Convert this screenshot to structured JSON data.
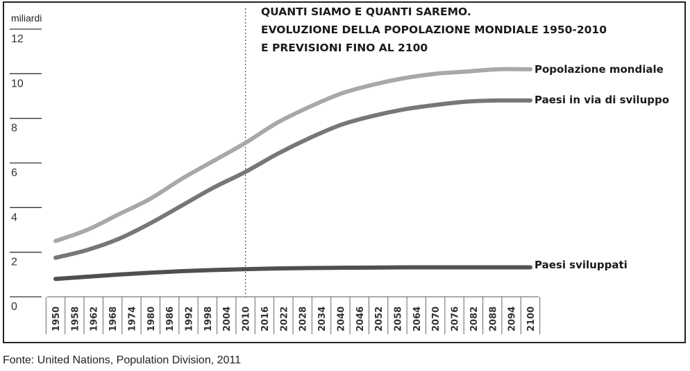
{
  "chart_data": {
    "type": "line",
    "title_lines": [
      "QUANTI SIAMO E QUANTI SAREMO.",
      "EVOLUZIONE DELLA POPOLAZIONE MONDIALE 1950-2010",
      "E PREVISIONI FINO AL 2100"
    ],
    "ylabel": "miliardi",
    "yticks": [
      "0",
      "2",
      "4",
      "6",
      "8",
      "10",
      "12"
    ],
    "ylim": [
      0,
      12
    ],
    "xticks": [
      "1950",
      "1958",
      "1962",
      "1968",
      "1974",
      "1980",
      "1986",
      "1992",
      "1998",
      "2004",
      "2010",
      "2016",
      "2022",
      "2028",
      "2034",
      "2040",
      "2046",
      "2052",
      "2058",
      "2064",
      "2070",
      "2076",
      "2082",
      "2088",
      "2094",
      "2100"
    ],
    "xlim": [
      1950,
      2100
    ],
    "divider_year": 2010,
    "grid": false,
    "series": [
      {
        "name": "Popolazione mondiale",
        "color": "#a8a8a8",
        "x": [
          1950,
          1960,
          1970,
          1980,
          1990,
          2000,
          2010,
          2020,
          2030,
          2040,
          2050,
          2060,
          2070,
          2080,
          2090,
          2100
        ],
        "y": [
          2.5,
          3.0,
          3.7,
          4.4,
          5.3,
          6.1,
          6.9,
          7.8,
          8.5,
          9.1,
          9.5,
          9.8,
          10.0,
          10.1,
          10.2,
          10.2
        ]
      },
      {
        "name": "Paesi in via di sviluppo",
        "color": "#777777",
        "x": [
          1950,
          1960,
          1970,
          1980,
          1990,
          2000,
          2010,
          2020,
          2030,
          2040,
          2050,
          2060,
          2070,
          2080,
          2090,
          2100
        ],
        "y": [
          1.75,
          2.1,
          2.6,
          3.3,
          4.1,
          4.9,
          5.6,
          6.4,
          7.1,
          7.7,
          8.1,
          8.4,
          8.6,
          8.75,
          8.8,
          8.8
        ]
      },
      {
        "name": "Paesi sviluppati",
        "color": "#505050",
        "x": [
          1950,
          1960,
          1970,
          1980,
          1990,
          2000,
          2010,
          2020,
          2030,
          2040,
          2050,
          2060,
          2070,
          2080,
          2090,
          2100
        ],
        "y": [
          0.8,
          0.9,
          1.0,
          1.08,
          1.15,
          1.2,
          1.24,
          1.27,
          1.29,
          1.3,
          1.31,
          1.32,
          1.32,
          1.32,
          1.32,
          1.32
        ]
      }
    ]
  },
  "source_note": "Fonte: United Nations, Population Division, 2011"
}
